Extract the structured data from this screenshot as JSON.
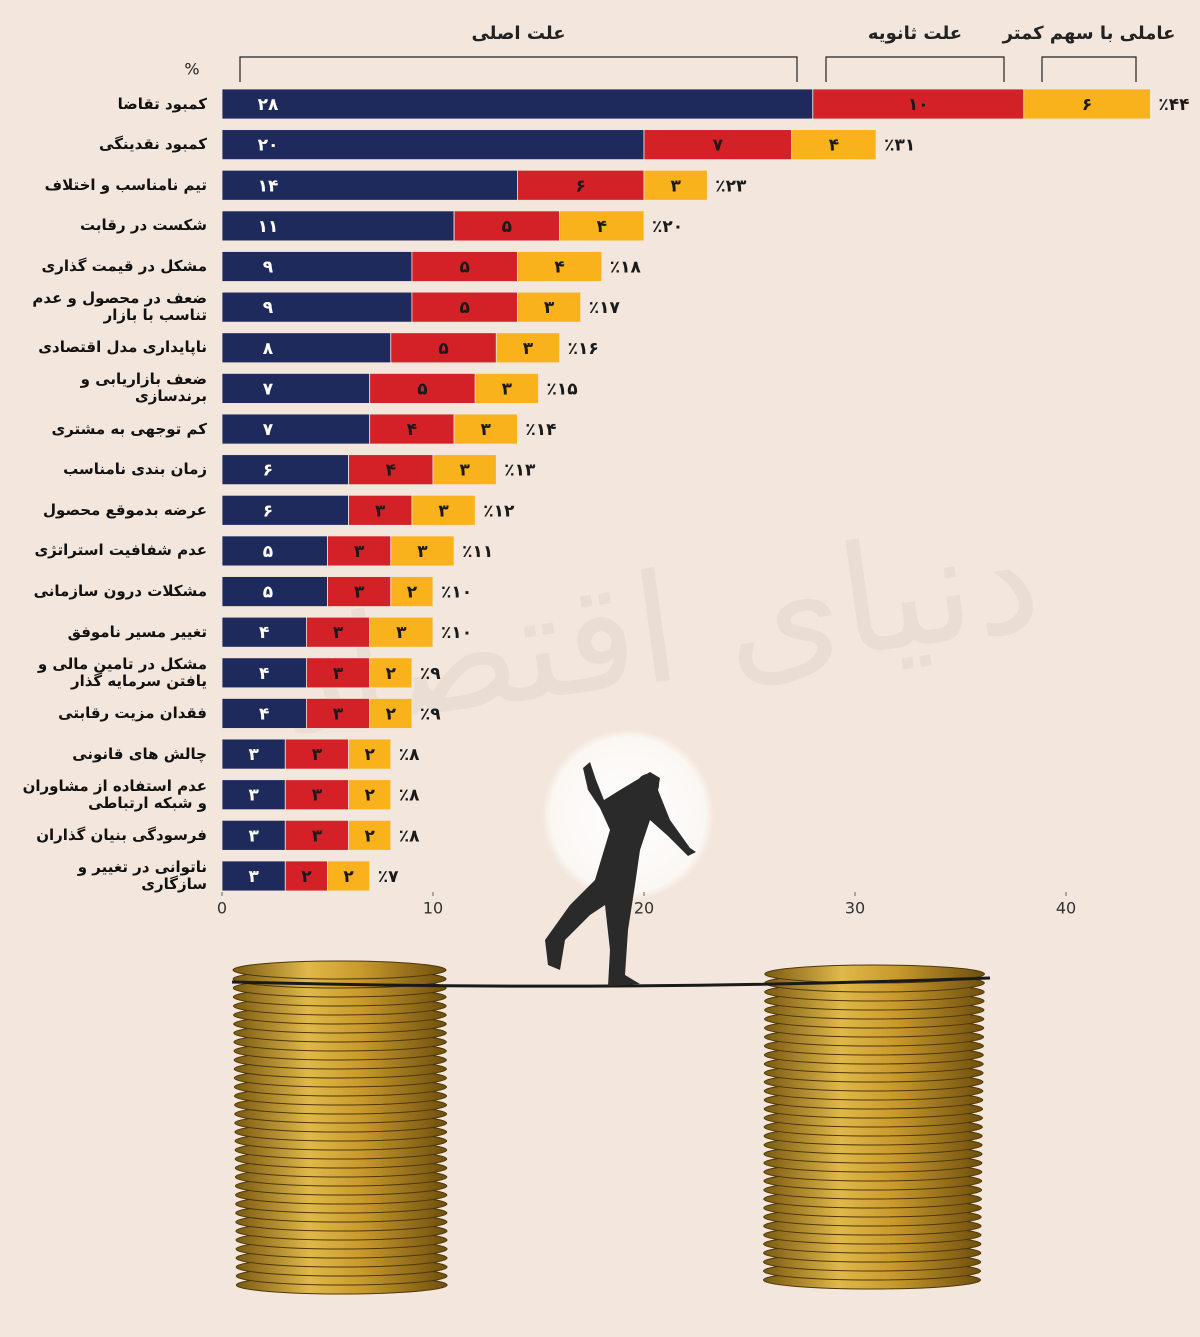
{
  "chart_data": {
    "type": "stacked-bar-horizontal",
    "unit": "%",
    "watermark": "دنیای اقتصاد",
    "categories": [
      "کمبود تقاضا",
      "کمبود نقدینگی",
      "تیم نامناسب و اختلاف",
      "شکست در رقابت",
      "مشکل در قیمت گذاری",
      "ضعف در محصول و عدم تناسب با بازار",
      "ناپایداری مدل اقتصادی",
      "ضعف بازاریابی و برندسازی",
      "کم توجهی به مشتری",
      "زمان بندی نامناسب",
      "عرضه بدموقع محصول",
      "عدم شفافیت استراتژی",
      "مشکلات درون سازمانی",
      "تغییر مسیر ناموفق",
      "مشکل در تامین مالی و یافتن سرمایه گذار",
      "فقدان مزیت رقابتی",
      "چالش های قانونی",
      "عدم استفاده از مشاوران و شبکه ارتباطی",
      "فرسودگی بنیان گذاران",
      "ناتوانی در تغییر و سازگاری"
    ],
    "series": [
      {
        "name": "علت اصلی",
        "color": "#1f2a5c",
        "values": [
          28,
          20,
          14,
          11,
          9,
          9,
          8,
          7,
          7,
          6,
          6,
          5,
          5,
          4,
          4,
          4,
          3,
          3,
          3,
          3
        ],
        "value_labels": [
          "۲۸",
          "۲۰",
          "۱۴",
          "۱۱",
          "۹",
          "۹",
          "۸",
          "۷",
          "۷",
          "۶",
          "۶",
          "۵",
          "۵",
          "۴",
          "۴",
          "۴",
          "۳",
          "۳",
          "۳",
          "۳"
        ]
      },
      {
        "name": "علت ثانویه",
        "color": "#d42027",
        "values": [
          10,
          7,
          6,
          5,
          5,
          5,
          5,
          5,
          4,
          4,
          3,
          3,
          3,
          3,
          3,
          3,
          3,
          3,
          3,
          2
        ],
        "value_labels": [
          "۱۰",
          "۷",
          "۶",
          "۵",
          "۵",
          "۵",
          "۵",
          "۵",
          "۴",
          "۴",
          "۳",
          "۳",
          "۳",
          "۳",
          "۳",
          "۳",
          "۳",
          "۳",
          "۳",
          "۲"
        ]
      },
      {
        "name": "عاملی با سهم کمتر",
        "color": "#f9b21b",
        "values": [
          6,
          4,
          3,
          4,
          4,
          3,
          3,
          3,
          3,
          3,
          3,
          3,
          2,
          3,
          2,
          2,
          2,
          2,
          2,
          2
        ],
        "value_labels": [
          "۶",
          "۴",
          "۳",
          "۴",
          "۴",
          "۳",
          "۳",
          "۳",
          "۳",
          "۳",
          "۳",
          "۳",
          "۲",
          "۳",
          "۲",
          "۲",
          "۲",
          "۲",
          "۲",
          "۲"
        ]
      }
    ],
    "total_labels": [
      "٪۴۴",
      "٪۳۱",
      "٪۲۳",
      "٪۲۰",
      "٪۱۸",
      "٪۱۷",
      "٪۱۶",
      "٪۱۵",
      "٪۱۴",
      "٪۱۳",
      "٪۱۲",
      "٪۱۱",
      "٪۱۰",
      "٪۱۰",
      "٪۹",
      "٪۹",
      "٪۸",
      "٪۸",
      "٪۸",
      "٪۷"
    ],
    "xlim": [
      0,
      45
    ],
    "xticks": [
      0,
      10,
      20,
      30,
      40
    ]
  }
}
